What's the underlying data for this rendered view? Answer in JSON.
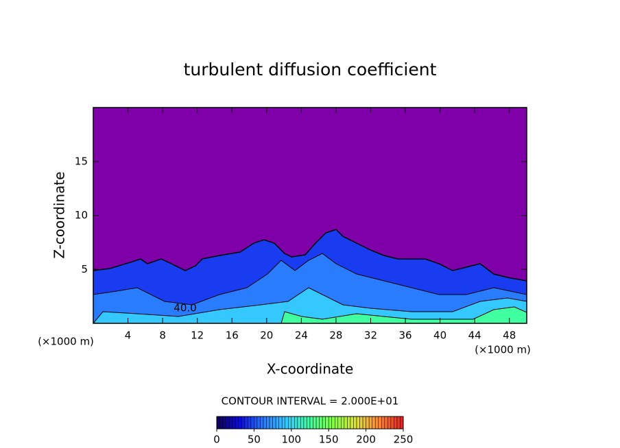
{
  "chart_data": {
    "type": "contour",
    "title": "turbulent diffusion coefficient",
    "x_label": "X-coordinate",
    "y_label": "Z-coordinate",
    "x_unit": "(×1000 m)",
    "y_unit": "(×1000 m)",
    "xlim": [
      0,
      50
    ],
    "ylim": [
      0,
      20
    ],
    "xticks": [
      4,
      8,
      12,
      16,
      20,
      24,
      28,
      32,
      36,
      40,
      44,
      48
    ],
    "yticks": [
      5,
      10,
      15
    ],
    "contour_interval_text": "CONTOUR INTERVAL = 2.000E+01",
    "contour_label": "40.0",
    "background_color": "#7f00a8",
    "colorbar": {
      "lim": [
        0,
        250
      ],
      "ticks": [
        0,
        50,
        100,
        150,
        200,
        250
      ],
      "colors": [
        "#10005a",
        "#0a0ae0",
        "#2a7cff",
        "#35c8ff",
        "#40ffa0",
        "#80ff40",
        "#e0e040",
        "#ff8030",
        "#e02020"
      ]
    }
  }
}
